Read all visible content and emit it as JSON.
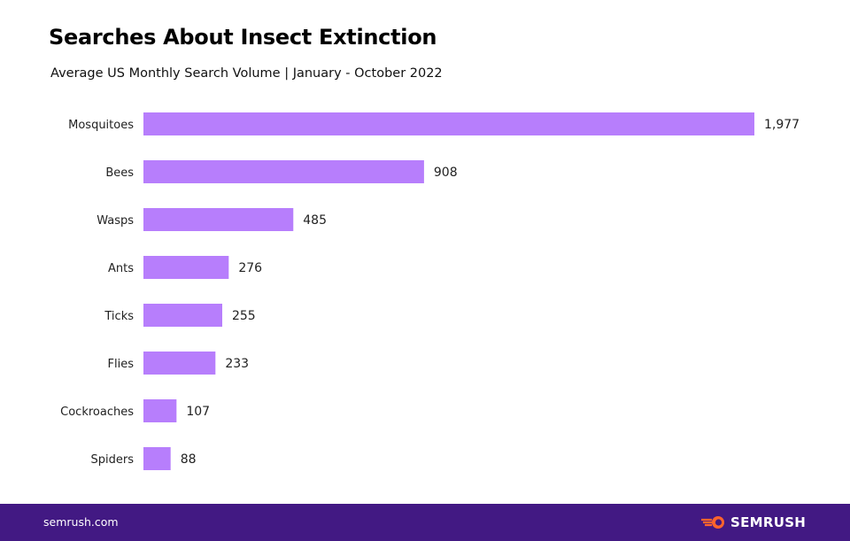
{
  "chart_data": {
    "type": "bar",
    "orientation": "horizontal",
    "title": "Searches About Insect Extinction",
    "subtitle": "Average US Monthly Search Volume | January - October 2022",
    "categories": [
      "Mosquitoes",
      "Bees",
      "Wasps",
      "Ants",
      "Ticks",
      "Flies",
      "Cockroaches",
      "Spiders"
    ],
    "values": [
      1977,
      908,
      485,
      276,
      255,
      233,
      107,
      88
    ],
    "value_labels": [
      "1,977",
      "908",
      "485",
      "276",
      "255",
      "233",
      "107",
      "88"
    ],
    "xlabel": "",
    "ylabel": "",
    "xlim": [
      0,
      1977
    ],
    "grid": false,
    "bar_color": "#b77efc"
  },
  "footer": {
    "site": "semrush.com",
    "brand": "SEMRUSH",
    "bg_color": "#421983",
    "logo_color": "#ff642d"
  }
}
